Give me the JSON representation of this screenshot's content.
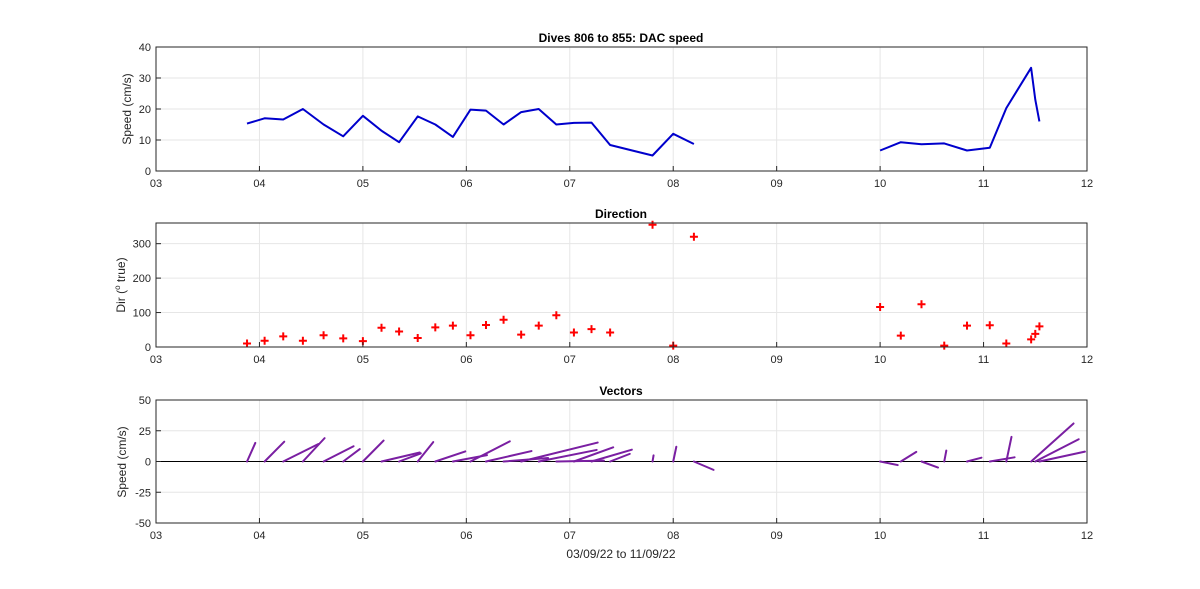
{
  "chart_data": [
    {
      "type": "line",
      "title": "Dives 806 to 855: DAC speed",
      "xlabel": "",
      "ylabel": "Speed (cm/s)",
      "xlim": [
        3,
        12
      ],
      "ylim": [
        0,
        40
      ],
      "xticks": [
        3,
        4,
        5,
        6,
        7,
        8,
        9,
        10,
        11,
        12
      ],
      "xticklabels": [
        "03",
        "04",
        "05",
        "06",
        "07",
        "08",
        "09",
        "10",
        "11",
        "12"
      ],
      "yticks": [
        0,
        10,
        20,
        30,
        40
      ],
      "yticklabels": [
        "0",
        "10",
        "20",
        "30",
        "40"
      ],
      "grid": true,
      "color": "#0000cc",
      "segments": [
        {
          "x": [
            3.88,
            4.05,
            4.23,
            4.42,
            4.62,
            4.81,
            5.0,
            5.18,
            5.35,
            5.53,
            5.7,
            5.87,
            6.04,
            6.19,
            6.36,
            6.53,
            6.7,
            6.87,
            7.04,
            7.21,
            7.39,
            7.8,
            8.0,
            8.2
          ],
          "y": [
            15.3,
            17.0,
            16.6,
            20.0,
            15.0,
            11.2,
            17.8,
            13.0,
            9.3,
            17.6,
            15.0,
            11.0,
            19.8,
            19.5,
            15.0,
            19.0,
            20.0,
            15.0,
            15.5,
            15.6,
            8.4,
            5.0,
            12.0,
            8.7
          ]
        },
        {
          "x": [
            10.0,
            10.2,
            10.4,
            10.62,
            10.84,
            11.06,
            11.22,
            11.46,
            11.5,
            11.54
          ],
          "y": [
            6.6,
            9.3,
            8.6,
            8.9,
            6.6,
            7.5,
            20.3,
            33.3,
            23.0,
            16.0
          ]
        }
      ]
    },
    {
      "type": "scatter",
      "title": "Direction",
      "xlabel": "",
      "ylabel": "Dir (",
      "ylabel_sup": "o",
      "ylabel_tail": " true)",
      "xlim": [
        3,
        12
      ],
      "ylim": [
        0,
        360
      ],
      "xticks": [
        3,
        4,
        5,
        6,
        7,
        8,
        9,
        10,
        11,
        12
      ],
      "xticklabels": [
        "03",
        "04",
        "05",
        "06",
        "07",
        "08",
        "09",
        "10",
        "11",
        "12"
      ],
      "yticks": [
        0,
        100,
        200,
        300
      ],
      "yticklabels": [
        "0",
        "100",
        "200",
        "300"
      ],
      "grid": true,
      "marker": "+",
      "color": "#ff0000",
      "x": [
        3.88,
        4.05,
        4.23,
        4.42,
        4.62,
        4.81,
        5.0,
        5.18,
        5.35,
        5.53,
        5.7,
        5.87,
        6.04,
        6.19,
        6.36,
        6.53,
        6.7,
        6.87,
        7.04,
        7.21,
        7.39,
        7.8,
        8.0,
        8.2,
        10.0,
        10.2,
        10.4,
        10.62,
        10.84,
        11.06,
        11.22,
        11.46,
        11.5,
        11.54
      ],
      "y": [
        10,
        18,
        31,
        18,
        34,
        25,
        17,
        56,
        45,
        26,
        57,
        62,
        34,
        64,
        79,
        36,
        62,
        92,
        42,
        52,
        42,
        355,
        4,
        320,
        116,
        33,
        124,
        4,
        62,
        63,
        10,
        22,
        38,
        60
      ]
    },
    {
      "type": "vector",
      "title": "Vectors",
      "xlabel": "03/09/22 to 11/09/22",
      "ylabel": "Speed (cm/s)",
      "xlim": [
        3,
        12
      ],
      "ylim": [
        -50,
        50
      ],
      "xticks": [
        3,
        4,
        5,
        6,
        7,
        8,
        9,
        10,
        11,
        12
      ],
      "xticklabels": [
        "03",
        "04",
        "05",
        "06",
        "07",
        "08",
        "09",
        "10",
        "11",
        "12"
      ],
      "yticks": [
        -50,
        -25,
        0,
        25,
        50
      ],
      "yticklabels": [
        "-50",
        "-25",
        "0",
        "25",
        "50"
      ],
      "grid": true,
      "color": "#7a1fa2",
      "x": [
        3.88,
        4.05,
        4.23,
        4.42,
        4.62,
        4.81,
        5.0,
        5.18,
        5.35,
        5.53,
        5.7,
        5.87,
        6.04,
        6.19,
        6.36,
        6.53,
        6.7,
        6.87,
        7.04,
        7.21,
        7.39,
        7.8,
        8.0,
        8.2,
        10.0,
        10.2,
        10.4,
        10.62,
        10.84,
        11.06,
        11.22,
        11.46,
        11.5,
        11.54
      ],
      "u": [
        0.08,
        0.19,
        0.34,
        0.21,
        0.29,
        0.16,
        0.2,
        0.37,
        0.21,
        0.15,
        0.29,
        0.33,
        0.38,
        0.44,
        0.43,
        0.74,
        0.56,
        0.46,
        0.38,
        0.39,
        0.19,
        0.01,
        0.03,
        0.19,
        0.17,
        0.15,
        0.16,
        0.02,
        0.14,
        0.24,
        0.05,
        0.41,
        0.42,
        0.44
      ],
      "v": [
        15.1,
        16.1,
        14.2,
        19.0,
        12.4,
        10.1,
        17.0,
        7.3,
        6.6,
        15.8,
        8.2,
        5.2,
        16.4,
        8.5,
        2.8,
        15.4,
        9.4,
        0.7,
        11.5,
        9.6,
        6.2,
        5.0,
        12.0,
        -6.8,
        -2.9,
        7.8,
        -4.9,
        8.9,
        3.1,
        3.4,
        20.0,
        30.9,
        18.1,
        8.0
      ]
    }
  ]
}
